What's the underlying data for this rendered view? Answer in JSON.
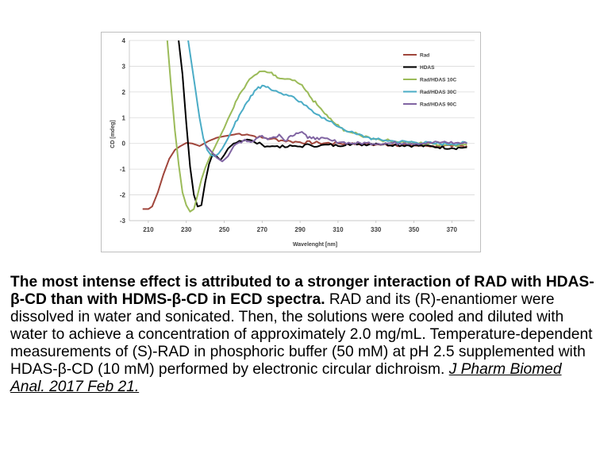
{
  "chart_data": {
    "type": "line",
    "title": "",
    "xlabel": "Wavelenght [nm]",
    "ylabel": "CD [mdeg]",
    "xlim": [
      200,
      382
    ],
    "ylim": [
      -3,
      4
    ],
    "x_ticks": [
      "210",
      "230",
      "250",
      "270",
      "290",
      "310",
      "330",
      "350",
      "370"
    ],
    "y_ticks": [
      "-3",
      "-2",
      "-1",
      "0",
      "1",
      "2",
      "3",
      "4"
    ],
    "grid": "horizontal",
    "legend_position": "top-right",
    "series": [
      {
        "name": "Rad",
        "color": "#a0463c",
        "points": [
          [
            207,
            -2.55
          ],
          [
            210,
            -2.55
          ],
          [
            212,
            -2.45
          ],
          [
            215,
            -1.9
          ],
          [
            218,
            -1.2
          ],
          [
            221,
            -0.6
          ],
          [
            224,
            -0.25
          ],
          [
            227,
            -0.1
          ],
          [
            230,
            0.02
          ],
          [
            233,
            0.0
          ],
          [
            235,
            -0.05
          ],
          [
            237,
            -0.1
          ],
          [
            239,
            -0.02
          ],
          [
            242,
            0.1
          ],
          [
            246,
            0.22
          ],
          [
            250,
            0.28
          ],
          [
            254,
            0.33
          ],
          [
            258,
            0.38
          ],
          [
            262,
            0.35
          ],
          [
            266,
            0.28
          ],
          [
            270,
            0.22
          ],
          [
            275,
            0.18
          ],
          [
            280,
            0.12
          ],
          [
            285,
            0.08
          ],
          [
            290,
            0.05
          ],
          [
            300,
            0.02
          ],
          [
            310,
            0.0
          ],
          [
            320,
            -0.02
          ],
          [
            330,
            -0.05
          ],
          [
            340,
            -0.05
          ],
          [
            350,
            -0.08
          ],
          [
            360,
            -0.1
          ],
          [
            370,
            -0.12
          ],
          [
            378,
            -0.1
          ]
        ]
      },
      {
        "name": "HDAS",
        "color": "#000000",
        "points": [
          [
            226,
            4
          ],
          [
            228,
            2.7
          ],
          [
            230,
            0.8
          ],
          [
            232,
            -0.9
          ],
          [
            234,
            -2.0
          ],
          [
            236,
            -2.45
          ],
          [
            238,
            -2.4
          ],
          [
            240,
            -1.5
          ],
          [
            242,
            -0.8
          ],
          [
            244,
            -0.4
          ],
          [
            246,
            -0.5
          ],
          [
            248,
            -0.65
          ],
          [
            250,
            -0.45
          ],
          [
            252,
            -0.2
          ],
          [
            255,
            0.0
          ],
          [
            258,
            0.1
          ],
          [
            262,
            0.15
          ],
          [
            266,
            0.05
          ],
          [
            270,
            -0.05
          ],
          [
            274,
            -0.12
          ],
          [
            278,
            -0.1
          ],
          [
            282,
            -0.15
          ],
          [
            286,
            -0.1
          ],
          [
            290,
            -0.12
          ],
          [
            295,
            -0.05
          ],
          [
            300,
            -0.1
          ],
          [
            305,
            -0.05
          ],
          [
            310,
            -0.1
          ],
          [
            315,
            0.0
          ],
          [
            320,
            -0.05
          ],
          [
            330,
            0.0
          ],
          [
            340,
            -0.05
          ],
          [
            350,
            -0.08
          ],
          [
            360,
            -0.12
          ],
          [
            370,
            -0.18
          ],
          [
            378,
            -0.15
          ]
        ]
      },
      {
        "name": "Rad/HDAS 10C",
        "color": "#9bbb59",
        "points": [
          [
            220,
            4
          ],
          [
            222,
            2.2
          ],
          [
            224,
            0.5
          ],
          [
            226,
            -0.8
          ],
          [
            228,
            -1.9
          ],
          [
            230,
            -2.4
          ],
          [
            232,
            -2.65
          ],
          [
            234,
            -2.55
          ],
          [
            236,
            -2.0
          ],
          [
            238,
            -1.4
          ],
          [
            240,
            -0.95
          ],
          [
            242,
            -0.6
          ],
          [
            244,
            -0.3
          ],
          [
            246,
            0.0
          ],
          [
            248,
            0.3
          ],
          [
            250,
            0.6
          ],
          [
            252,
            0.95
          ],
          [
            255,
            1.4
          ],
          [
            258,
            1.9
          ],
          [
            262,
            2.35
          ],
          [
            266,
            2.65
          ],
          [
            270,
            2.8
          ],
          [
            274,
            2.75
          ],
          [
            276,
            2.65
          ],
          [
            278,
            2.55
          ],
          [
            282,
            2.5
          ],
          [
            286,
            2.45
          ],
          [
            290,
            2.3
          ],
          [
            293,
            2.05
          ],
          [
            296,
            1.75
          ],
          [
            299,
            1.5
          ],
          [
            302,
            1.25
          ],
          [
            305,
            1.0
          ],
          [
            308,
            0.8
          ],
          [
            311,
            0.62
          ],
          [
            314,
            0.5
          ],
          [
            318,
            0.4
          ],
          [
            322,
            0.3
          ],
          [
            326,
            0.25
          ],
          [
            330,
            0.18
          ],
          [
            335,
            0.12
          ],
          [
            340,
            0.08
          ],
          [
            350,
            0.02
          ],
          [
            360,
            -0.02
          ],
          [
            370,
            -0.05
          ],
          [
            378,
            -0.05
          ]
        ]
      },
      {
        "name": "Rad/HDAS 30C",
        "color": "#4bacc6",
        "points": [
          [
            231,
            4
          ],
          [
            233,
            3.0
          ],
          [
            235,
            2.0
          ],
          [
            237,
            1.0
          ],
          [
            239,
            0.2
          ],
          [
            241,
            -0.25
          ],
          [
            243,
            -0.45
          ],
          [
            245,
            -0.5
          ],
          [
            247,
            -0.4
          ],
          [
            249,
            -0.2
          ],
          [
            252,
            0.2
          ],
          [
            255,
            0.65
          ],
          [
            258,
            1.1
          ],
          [
            261,
            1.5
          ],
          [
            264,
            1.85
          ],
          [
            267,
            2.1
          ],
          [
            270,
            2.25
          ],
          [
            273,
            2.2
          ],
          [
            276,
            2.05
          ],
          [
            280,
            1.95
          ],
          [
            284,
            1.85
          ],
          [
            288,
            1.7
          ],
          [
            292,
            1.5
          ],
          [
            296,
            1.3
          ],
          [
            300,
            1.1
          ],
          [
            304,
            0.9
          ],
          [
            308,
            0.75
          ],
          [
            312,
            0.6
          ],
          [
            316,
            0.45
          ],
          [
            320,
            0.35
          ],
          [
            325,
            0.25
          ],
          [
            330,
            0.15
          ],
          [
            335,
            0.12
          ],
          [
            340,
            0.08
          ],
          [
            350,
            0.05
          ],
          [
            360,
            0.0
          ],
          [
            370,
            -0.02
          ],
          [
            378,
            0.02
          ]
        ]
      },
      {
        "name": "Rad/HDAS 90C",
        "color": "#8064a2",
        "points": [
          [
            240,
            -0.05
          ],
          [
            243,
            -0.3
          ],
          [
            246,
            -0.55
          ],
          [
            249,
            -0.7
          ],
          [
            252,
            -0.5
          ],
          [
            255,
            -0.1
          ],
          [
            258,
            0.05
          ],
          [
            261,
            0.15
          ],
          [
            264,
            0.05
          ],
          [
            267,
            0.2
          ],
          [
            270,
            0.3
          ],
          [
            273,
            0.15
          ],
          [
            276,
            0.25
          ],
          [
            279,
            0.35
          ],
          [
            282,
            0.1
          ],
          [
            285,
            0.3
          ],
          [
            288,
            0.4
          ],
          [
            291,
            0.45
          ],
          [
            294,
            0.2
          ],
          [
            297,
            0.25
          ],
          [
            300,
            0.15
          ],
          [
            303,
            0.2
          ],
          [
            307,
            0.1
          ],
          [
            312,
            0.05
          ],
          [
            318,
            0.0
          ],
          [
            325,
            0.02
          ],
          [
            335,
            0.0
          ],
          [
            345,
            0.02
          ],
          [
            355,
            0.0
          ],
          [
            365,
            0.05
          ],
          [
            372,
            0.02
          ],
          [
            378,
            0.0
          ]
        ]
      }
    ]
  },
  "caption": {
    "bold_text": "The most intense effect is attributed to a stronger interaction of RAD with HDAS-β-CD than with HDMS-β-CD in ECD spectra.",
    "body_text": "RAD and its (R)-enantiomer were dissolved in water and sonicated. Then, the solutions were cooled and diluted with water to achieve a concentration of approximately 2.0 mg/mL. Temperature-dependent measurements of (S)-RAD in phosphoric buffer (50 mM) at pH 2.5 supplemented with HDAS-β-CD (10 mM) performed by electronic circular dichroism.",
    "citation": "J Pharm Biomed Anal. 2017 Feb 21."
  }
}
